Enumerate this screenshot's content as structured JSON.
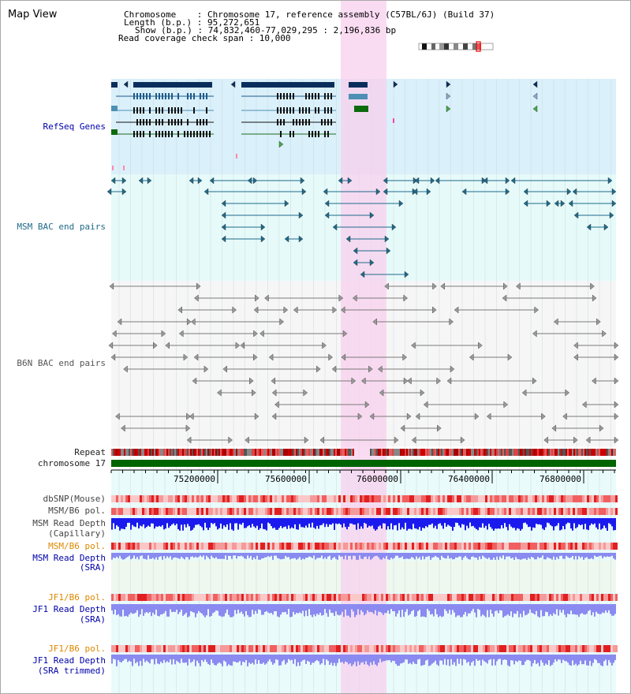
{
  "title": "Map View",
  "info": {
    "chromosome": "Chromosome    : Chromosome 17, reference assembly (C57BL/6J) (Build 37)",
    "length": "Length (b.p.) : 95,272,651",
    "show": "Show (b.p.) : 74,832,460-77,029,295 : 2,196,836 bp",
    "coverage": "Read coverage check span : 10,000"
  },
  "tracks": {
    "refseq": "RefSeq Genes",
    "msm_bac": "MSM BAC end pairs",
    "b6n_bac": "B6N BAC end pairs",
    "repeat": "Repeat",
    "chromosome": "chromosome 17",
    "dbsnp": "dbSNP(Mouse)",
    "msm_b6_pol_1": "MSM/B6 pol.",
    "msm_read_depth_cap_1": "MSM Read Depth",
    "msm_read_depth_cap_2": "(Capillary)",
    "msm_b6_pol_2": "MSM/B6 pol.",
    "msm_read_depth_sra_1": "MSM Read Depth",
    "msm_read_depth_sra_2": "(SRA)",
    "jf1_b6_pol_1": "JF1/B6 pol.",
    "jf1_read_depth_sra_1": "JF1 Read Depth",
    "jf1_read_depth_sra_2": "(SRA)",
    "jf1_b6_pol_2": "JF1/B6 pol.",
    "jf1_read_depth_trim_1": "JF1 Read Depth",
    "jf1_read_depth_trim_2": "(SRA trimmed)"
  },
  "axis": {
    "ticks": [
      "75200000",
      "75600000",
      "76000000",
      "76400000",
      "76800000"
    ]
  },
  "colors": {
    "refseq_bg": "#daf0fa",
    "msm_bg": "#e6fafa",
    "highlight": "#f8d0ee",
    "navy": "#0a2e5c",
    "teal": "#1f6a8a",
    "gray": "#7a7a7a",
    "chr_green": "#006400",
    "label_blue": "#0000aa",
    "label_orange": "#dd8800",
    "depth_blue": "#1a1aee",
    "depth_light": "#8a8af0"
  }
}
